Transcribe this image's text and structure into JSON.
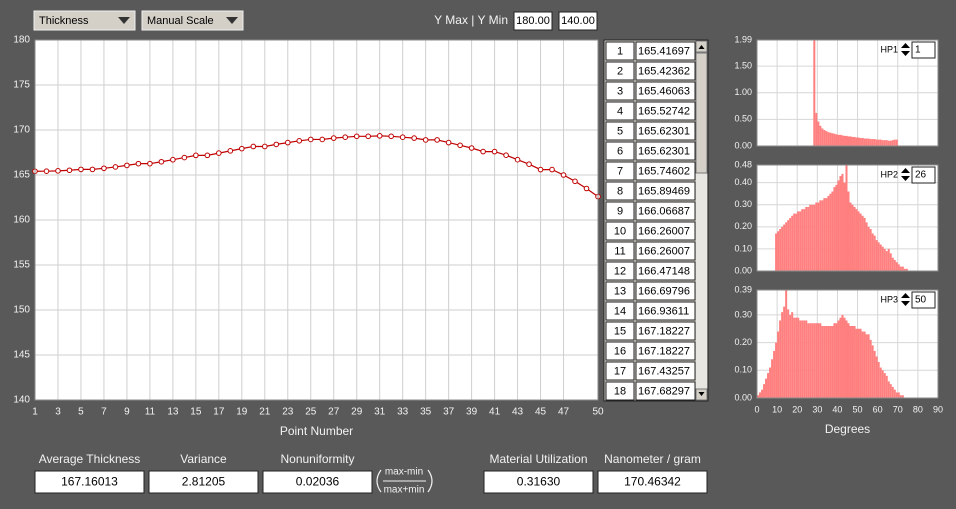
{
  "toolbar": {
    "quantity": "Thickness",
    "scale_mode": "Manual Scale",
    "y_range_label": "Y Max | Y Min",
    "y_max": "180.00",
    "y_min": "140.00"
  },
  "chart_data": [
    {
      "type": "line",
      "x_label": "Point Number",
      "color": "#c00000",
      "grid": true,
      "x": [
        1,
        2,
        3,
        4,
        5,
        6,
        7,
        8,
        9,
        10,
        11,
        12,
        13,
        14,
        15,
        16,
        17,
        18,
        19,
        20,
        21,
        22,
        23,
        24,
        25,
        26,
        27,
        28,
        29,
        30,
        31,
        32,
        33,
        34,
        35,
        36,
        37,
        38,
        39,
        40,
        41,
        42,
        43,
        44,
        45,
        46,
        47,
        48,
        49,
        50
      ],
      "values": [
        165.41697,
        165.42362,
        165.46063,
        165.52742,
        165.62301,
        165.62301,
        165.74602,
        165.89469,
        166.06687,
        166.26007,
        166.26007,
        166.47148,
        166.69796,
        166.93611,
        167.18227,
        167.18227,
        167.43257,
        167.68297,
        167.93,
        168.17,
        168.17,
        168.4,
        168.6,
        168.8,
        168.95,
        168.95,
        169.1,
        169.2,
        169.3,
        169.3,
        169.35,
        169.3,
        169.2,
        169.1,
        168.9,
        168.9,
        168.6,
        168.3,
        168.0,
        167.6,
        167.6,
        167.2,
        166.7,
        166.2,
        165.6,
        165.6,
        165.0,
        164.3,
        163.5,
        162.6
      ],
      "xlim": [
        1,
        50
      ],
      "xticks": [
        1,
        3,
        5,
        7,
        9,
        11,
        13,
        15,
        17,
        19,
        21,
        23,
        25,
        27,
        29,
        31,
        33,
        35,
        37,
        39,
        41,
        43,
        45,
        47,
        50
      ],
      "ylim": [
        140,
        180
      ],
      "yticks": [
        140,
        145,
        150,
        155,
        160,
        165,
        170,
        175,
        180
      ]
    },
    {
      "type": "histogram",
      "label": "HP1",
      "spin_value": 1,
      "color": "#ff7f7f",
      "grid": true,
      "bins": [
        28,
        29,
        30,
        31,
        32,
        33,
        34,
        35,
        36,
        37,
        38,
        39,
        40,
        41,
        42,
        43,
        44,
        45,
        46,
        47,
        48,
        49,
        50,
        51,
        52,
        53,
        54,
        55,
        56,
        57,
        58,
        59,
        60,
        61,
        62,
        63,
        64,
        65,
        66,
        67,
        68,
        69,
        70
      ],
      "counts": [
        1.99,
        0.62,
        0.46,
        0.38,
        0.33,
        0.3,
        0.28,
        0.26,
        0.25,
        0.24,
        0.23,
        0.22,
        0.21,
        0.21,
        0.2,
        0.19,
        0.19,
        0.18,
        0.18,
        0.17,
        0.17,
        0.16,
        0.16,
        0.15,
        0.15,
        0.14,
        0.14,
        0.14,
        0.13,
        0.13,
        0.13,
        0.12,
        0.12,
        0.12,
        0.11,
        0.11,
        0.11,
        0.1,
        0.1,
        0.11,
        0.12,
        0.12
      ],
      "xlim": [
        0,
        90
      ],
      "xticks": [
        0,
        10,
        20,
        30,
        40,
        50,
        60,
        70,
        80,
        90
      ],
      "ylim": [
        0,
        1.99
      ],
      "yticks": [
        {
          "value": 0,
          "label": "0.00"
        },
        {
          "value": 0.5,
          "label": "0.50"
        },
        {
          "value": 1,
          "label": "1.00"
        },
        {
          "value": 1.5,
          "label": "1.50"
        },
        {
          "value": 1.99,
          "label": "1.99"
        }
      ]
    },
    {
      "type": "histogram",
      "label": "HP2",
      "spin_value": 26,
      "color": "#ff7f7f",
      "grid": true,
      "bins": [
        9,
        10,
        11,
        12,
        13,
        14,
        15,
        16,
        17,
        18,
        19,
        20,
        21,
        22,
        23,
        24,
        25,
        26,
        27,
        28,
        29,
        30,
        31,
        32,
        33,
        34,
        35,
        36,
        37,
        38,
        39,
        40,
        41,
        42,
        43,
        44,
        45,
        46,
        47,
        48,
        49,
        50,
        51,
        52,
        53,
        54,
        55,
        56,
        57,
        58,
        59,
        60,
        61,
        62,
        63,
        64,
        65,
        66,
        67,
        68,
        69,
        70,
        71,
        72,
        73,
        74,
        75
      ],
      "counts": [
        0.17,
        0.18,
        0.19,
        0.2,
        0.21,
        0.22,
        0.23,
        0.24,
        0.25,
        0.26,
        0.26,
        0.27,
        0.27,
        0.28,
        0.28,
        0.29,
        0.29,
        0.3,
        0.3,
        0.3,
        0.31,
        0.31,
        0.32,
        0.32,
        0.33,
        0.33,
        0.34,
        0.35,
        0.36,
        0.38,
        0.39,
        0.41,
        0.43,
        0.44,
        0.4,
        0.48,
        0.36,
        0.31,
        0.3,
        0.29,
        0.28,
        0.27,
        0.26,
        0.25,
        0.24,
        0.22,
        0.2,
        0.19,
        0.17,
        0.16,
        0.14,
        0.13,
        0.12,
        0.11,
        0.1,
        0.09,
        0.1,
        0.08,
        0.06,
        0.05,
        0.04,
        0.03,
        0.02,
        0.02,
        0.01,
        0.01
      ],
      "xlim": [
        0,
        90
      ],
      "xticks": [
        0,
        10,
        20,
        30,
        40,
        50,
        60,
        70,
        80,
        90
      ],
      "ylim": [
        0,
        0.48
      ],
      "yticks": [
        {
          "value": 0,
          "label": "0.00"
        },
        {
          "value": 0.1,
          "label": "0.10"
        },
        {
          "value": 0.2,
          "label": "0.20"
        },
        {
          "value": 0.3,
          "label": "0.30"
        },
        {
          "value": 0.4,
          "label": "0.40"
        },
        {
          "value": 0.48,
          "label": "0.48"
        }
      ]
    },
    {
      "type": "histogram",
      "label": "HP3",
      "spin_value": 50,
      "color": "#ff7f7f",
      "grid": true,
      "x_label": "Degrees",
      "bins": [
        0,
        1,
        2,
        3,
        4,
        5,
        6,
        7,
        8,
        9,
        10,
        11,
        12,
        13,
        14,
        15,
        16,
        17,
        18,
        19,
        20,
        21,
        22,
        23,
        24,
        25,
        26,
        27,
        28,
        29,
        30,
        31,
        32,
        33,
        34,
        35,
        36,
        37,
        38,
        39,
        40,
        41,
        42,
        43,
        44,
        45,
        46,
        47,
        48,
        49,
        50,
        51,
        52,
        53,
        54,
        55,
        56,
        57,
        58,
        59,
        60,
        61,
        62,
        63,
        64,
        65,
        66,
        67,
        68,
        69,
        70,
        71,
        72,
        73
      ],
      "counts": [
        0.01,
        0.02,
        0.03,
        0.05,
        0.07,
        0.09,
        0.11,
        0.14,
        0.17,
        0.2,
        0.24,
        0.28,
        0.31,
        0.33,
        0.39,
        0.32,
        0.3,
        0.31,
        0.29,
        0.29,
        0.29,
        0.28,
        0.28,
        0.28,
        0.28,
        0.27,
        0.27,
        0.27,
        0.27,
        0.27,
        0.27,
        0.27,
        0.26,
        0.26,
        0.26,
        0.26,
        0.26,
        0.26,
        0.27,
        0.27,
        0.28,
        0.29,
        0.3,
        0.29,
        0.28,
        0.27,
        0.26,
        0.26,
        0.26,
        0.25,
        0.25,
        0.25,
        0.24,
        0.24,
        0.23,
        0.23,
        0.21,
        0.19,
        0.17,
        0.15,
        0.13,
        0.11,
        0.1,
        0.09,
        0.08,
        0.06,
        0.05,
        0.04,
        0.03,
        0.02,
        0.02,
        0.01,
        0.01
      ],
      "xlim": [
        0,
        90
      ],
      "xticks": [
        0,
        10,
        20,
        30,
        40,
        50,
        60,
        70,
        80,
        90
      ],
      "ylim": [
        0,
        0.39
      ],
      "yticks": [
        {
          "value": 0,
          "label": "0.00"
        },
        {
          "value": 0.1,
          "label": "0.10"
        },
        {
          "value": 0.2,
          "label": "0.20"
        },
        {
          "value": 0.3,
          "label": "0.30"
        },
        {
          "value": 0.39,
          "label": "0.39"
        }
      ]
    }
  ],
  "stats": [
    {
      "label": "Average Thickness",
      "value": "167.16013"
    },
    {
      "label": "Variance",
      "value": "2.81205"
    },
    {
      "label": "Nonuniformity",
      "value": "0.02036"
    },
    {
      "label": "Material Utilization",
      "value": "0.31630"
    },
    {
      "label": "Nanometer / gram",
      "value": "170.46342"
    }
  ],
  "formula": {
    "numerator": "max-min",
    "denominator": "max+min"
  }
}
